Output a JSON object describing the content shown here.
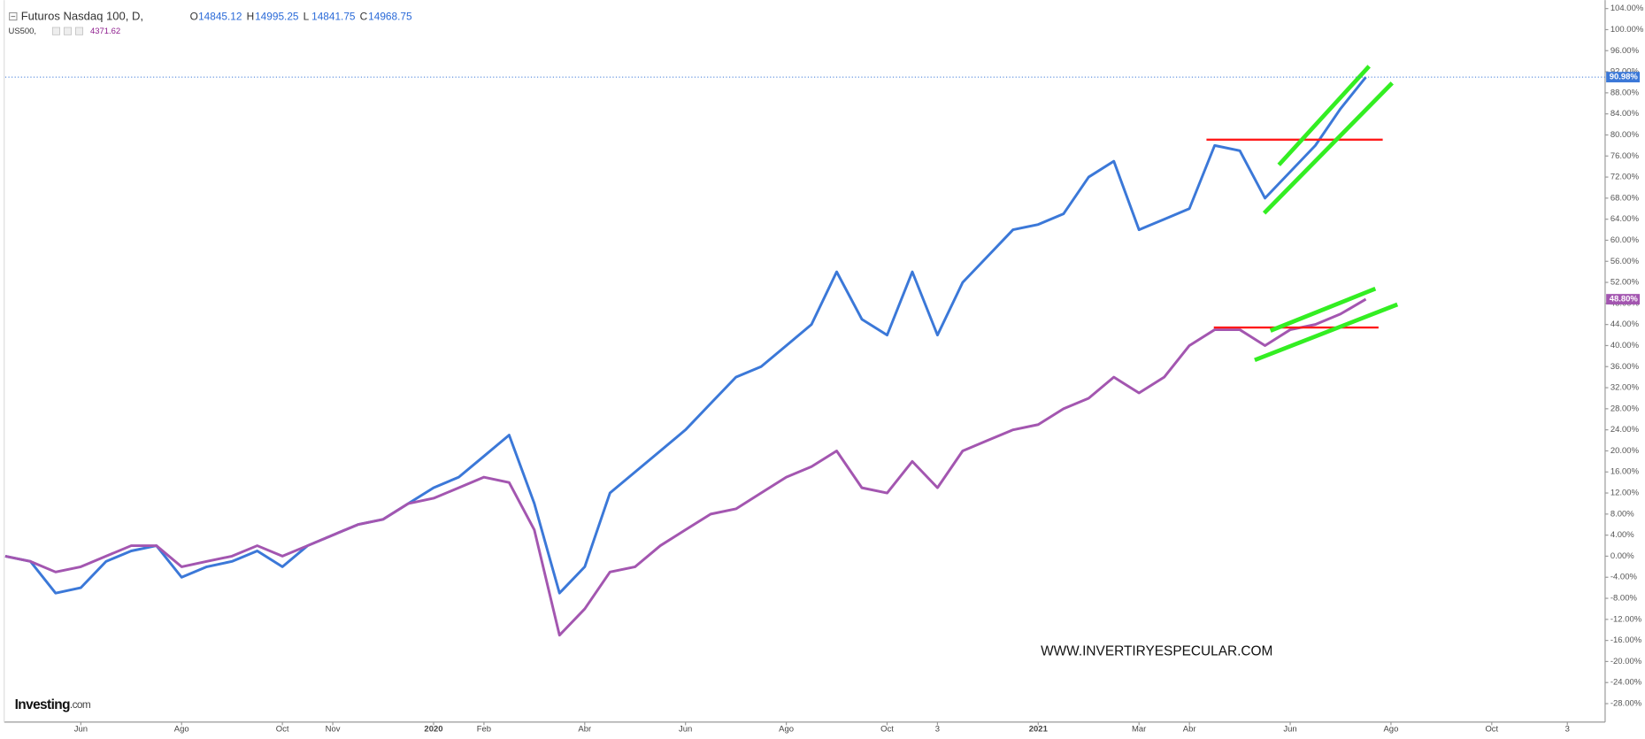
{
  "chart_data": {
    "type": "line",
    "title": "Futuros Nasdaq 100, D,",
    "ohlc": [
      {
        "key": "O",
        "value": 14845.12
      },
      {
        "key": "H",
        "value": 14995.25
      },
      {
        "key": "L",
        "value": 14841.75
      },
      {
        "key": "C",
        "value": 14968.75
      }
    ],
    "compare_symbol": "US500,",
    "compare_value": 4371.62,
    "watermark": "WWW.INVERTIRYESPECULAR.COM",
    "logo": {
      "brand": "Investing",
      "suffix": ".com"
    },
    "categories": [
      null,
      null,
      null,
      "Jun",
      null,
      null,
      null,
      "Ago",
      null,
      null,
      null,
      "Oct",
      null,
      "Nov",
      null,
      null,
      null,
      "2020",
      null,
      "Feb",
      null,
      null,
      null,
      "Abr",
      null,
      null,
      null,
      "Jun",
      null,
      null,
      null,
      "Ago",
      null,
      null,
      null,
      "Oct",
      null,
      "3",
      null,
      null,
      null,
      "2021",
      null,
      null,
      null,
      "Mar",
      null,
      "Abr",
      null,
      null,
      null,
      "Jun",
      null,
      null,
      null,
      "Ago",
      null,
      null,
      null,
      "Oct",
      null,
      null,
      "3",
      null
    ],
    "series": [
      {
        "name": "Futuros Nasdaq 100",
        "color": "#3b78d8",
        "values": [
          0,
          -1,
          -7,
          -6,
          -1,
          1,
          2,
          -4,
          -2,
          -1,
          1,
          -2,
          2,
          4,
          6,
          7,
          10,
          13,
          15,
          19,
          23,
          10,
          -7,
          -2,
          12,
          16,
          20,
          24,
          29,
          34,
          36,
          40,
          44,
          54,
          45,
          42,
          54,
          42,
          52,
          57,
          62,
          63,
          65,
          72,
          75,
          62,
          64,
          66,
          78,
          77,
          68,
          73,
          78,
          85,
          90.98,
          null,
          null,
          null,
          null,
          null,
          null,
          null,
          null,
          null
        ],
        "last": {
          "value": 90.98,
          "label": "90.98%"
        }
      },
      {
        "name": "US500",
        "color": "#a356b0",
        "values": [
          0,
          -1,
          -3,
          -2,
          0,
          2,
          2,
          -2,
          -1,
          0,
          2,
          0,
          2,
          4,
          6,
          7,
          10,
          11,
          13,
          15,
          14,
          5,
          -15,
          -10,
          -3,
          -2,
          2,
          5,
          8,
          9,
          12,
          15,
          17,
          20,
          13,
          12,
          18,
          13,
          20,
          22,
          24,
          25,
          28,
          30,
          34,
          31,
          34,
          40,
          43,
          43,
          40,
          43,
          44,
          46,
          48.8,
          null,
          null,
          null,
          null,
          null,
          null,
          null,
          null,
          null
        ],
        "last": {
          "value": 48.8,
          "label": "48.80%"
        }
      }
    ],
    "ylim": [
      -31.5,
      105
    ],
    "yticks": [
      {
        "value": -28,
        "label": "-28.00%"
      },
      {
        "value": -24,
        "label": "-24.00%"
      },
      {
        "value": -20,
        "label": "-20.00%"
      },
      {
        "value": -16,
        "label": "-16.00%"
      },
      {
        "value": -12,
        "label": "-12.00%"
      },
      {
        "value": -8,
        "label": "-8.00%"
      },
      {
        "value": -4,
        "label": "-4.00%"
      },
      {
        "value": 0,
        "label": "0.00%"
      },
      {
        "value": 4,
        "label": "4.00%"
      },
      {
        "value": 8,
        "label": "8.00%"
      },
      {
        "value": 12,
        "label": "12.00%"
      },
      {
        "value": 16,
        "label": "16.00%"
      },
      {
        "value": 20,
        "label": "20.00%"
      },
      {
        "value": 24,
        "label": "24.00%"
      },
      {
        "value": 28,
        "label": "28.00%"
      },
      {
        "value": 32,
        "label": "32.00%"
      },
      {
        "value": 36,
        "label": "36.00%"
      },
      {
        "value": 40,
        "label": "40.00%"
      },
      {
        "value": 44,
        "label": "44.00%"
      },
      {
        "value": 48,
        "label": "48.00%"
      },
      {
        "value": 52,
        "label": "52.00%"
      },
      {
        "value": 56,
        "label": "56.00%"
      },
      {
        "value": 60,
        "label": "60.00%"
      },
      {
        "value": 64,
        "label": "64.00%"
      },
      {
        "value": 68,
        "label": "68.00%"
      },
      {
        "value": 72,
        "label": "72.00%"
      },
      {
        "value": 76,
        "label": "76.00%"
      },
      {
        "value": 80,
        "label": "80.00%"
      },
      {
        "value": 84,
        "label": "84.00%"
      },
      {
        "value": 88,
        "label": "88.00%"
      },
      {
        "value": 92,
        "label": "92.00%"
      },
      {
        "value": 96,
        "label": "96.00%"
      },
      {
        "value": 100,
        "label": "100.00%"
      },
      {
        "value": 104,
        "label": "104.00%"
      }
    ],
    "grid": false
  }
}
